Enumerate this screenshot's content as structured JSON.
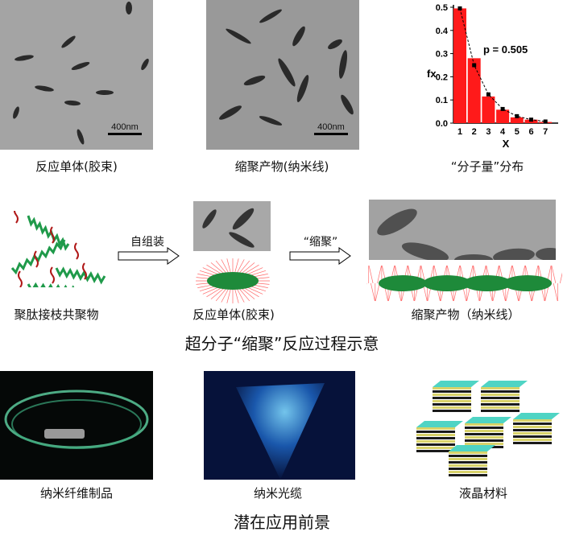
{
  "top": {
    "tem1": {
      "caption": "反应单体(胶束)",
      "scale_bar": "400nm"
    },
    "tem2": {
      "caption": "缩聚产物(纳米线)",
      "scale_bar": "400nm"
    },
    "chart_caption": "“分子量”分布"
  },
  "chart_data": {
    "type": "bar",
    "categories": [
      "1",
      "2",
      "3",
      "4",
      "5",
      "6",
      "7"
    ],
    "series": [
      {
        "kind": "bar",
        "values": [
          0.495,
          0.28,
          0.115,
          0.058,
          0.025,
          0.015,
          0.005
        ],
        "color": "#ff1a1a"
      },
      {
        "kind": "line-dashed-markers",
        "values": [
          0.495,
          0.25,
          0.124,
          0.061,
          0.03,
          0.015,
          0.007
        ],
        "color": "#000000"
      }
    ],
    "xlabel": "X",
    "ylabel": "fx",
    "ylim": [
      0,
      0.5
    ],
    "yticks": [
      "0.0",
      "0.1",
      "0.2",
      "0.3",
      "0.4",
      "0.5"
    ],
    "annotation": "p = 0.505"
  },
  "middle": {
    "polymer_label": "聚肽接枝共聚物",
    "arrow1_label": "自组装",
    "micelle_label": "反应单体(胶束)",
    "arrow2_label": "“缩聚”",
    "nanowire_label": "缩聚产物（纳米线）",
    "title": "超分子“缩聚”反应过程示意"
  },
  "bottom": {
    "items": [
      {
        "label": "纳米纤维制品"
      },
      {
        "label": "纳米光缆"
      },
      {
        "label": "液晶材料"
      }
    ],
    "title": "潜在应用前景"
  }
}
